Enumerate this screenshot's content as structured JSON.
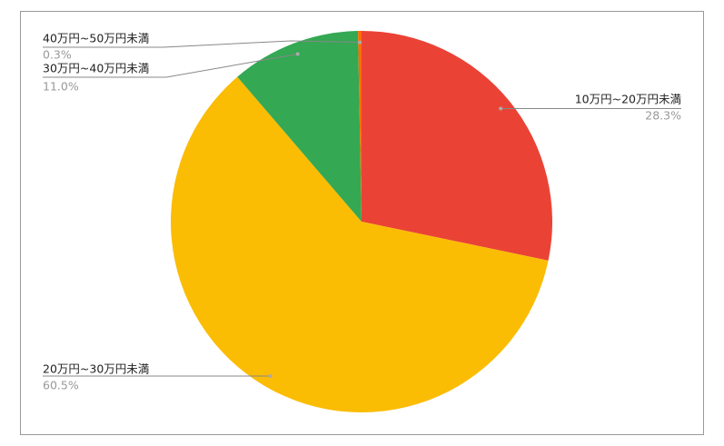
{
  "chart_data": {
    "type": "pie",
    "categories": [
      "10万円~20万円未満",
      "20万円~30万円未満",
      "30万円~40万円未満",
      "40万円~50万円未満"
    ],
    "values": [
      28.3,
      60.5,
      11.0,
      0.3
    ],
    "value_labels": [
      "28.3%",
      "60.5%",
      "11.0%",
      "0.3%"
    ],
    "colors": [
      "#ea4335",
      "#fbbc04",
      "#34a853",
      "#ff6d01"
    ]
  }
}
